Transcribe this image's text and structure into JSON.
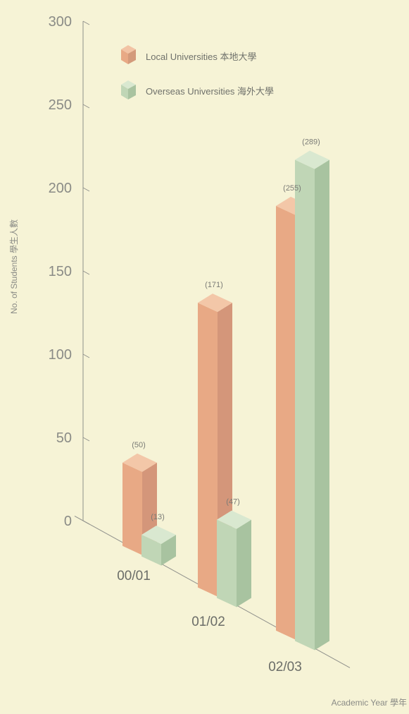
{
  "chart_data": {
    "type": "bar",
    "categories": [
      "00/01",
      "01/02",
      "02/03"
    ],
    "series": [
      {
        "name": "Local Universities 本地大學",
        "values": [
          50,
          171,
          255
        ],
        "color": "#e8a985"
      },
      {
        "name": "Overseas Universities 海外大學",
        "values": [
          13,
          47,
          289
        ],
        "color": "#c0d6b6"
      }
    ],
    "value_labels": [
      [
        "(50)",
        "(171)",
        "(255)"
      ],
      [
        "(13)",
        "(47)",
        "(289)"
      ]
    ],
    "yticks": [
      "0",
      "50",
      "100",
      "150",
      "200",
      "250",
      "300"
    ],
    "ylim": [
      0,
      300
    ],
    "xlabel": "Academic Year 學年",
    "ylabel": "No. of Students 學生人數",
    "legend_position": "top-left",
    "style": "3d-bar"
  }
}
